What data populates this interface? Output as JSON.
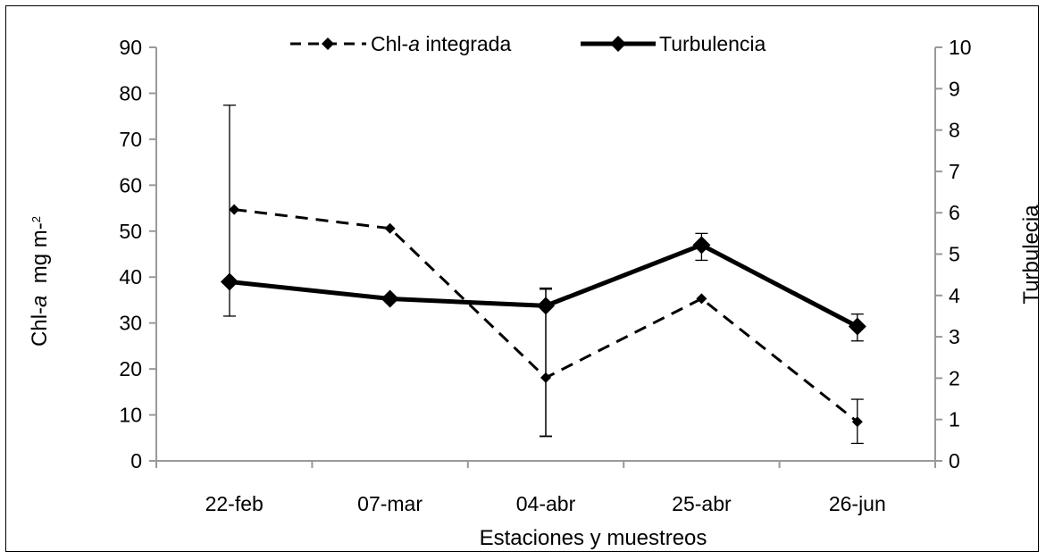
{
  "chart_data": {
    "type": "line",
    "categories": [
      "22-feb",
      "07-mar",
      "04-abr",
      "25-abr",
      "26-jun"
    ],
    "xlabel": "Estaciones y muestreos",
    "ylabel": {
      "prefix": "Chl-",
      "italic": "a",
      "suffix": "  mg m-",
      "sup": "2"
    },
    "y2label": "Turbulecia",
    "ylim": [
      0,
      90
    ],
    "y2lim": [
      0,
      10
    ],
    "yticks": [
      0,
      10,
      20,
      30,
      40,
      50,
      60,
      70,
      80,
      90
    ],
    "y2ticks": [
      0,
      1,
      2,
      3,
      4,
      5,
      6,
      7,
      8,
      9,
      10
    ],
    "grid": false,
    "legend_position": "top",
    "series": [
      {
        "name": {
          "prefix": "Chl-",
          "italic": "a",
          "suffix": " integrada"
        },
        "axis": "left",
        "style": "dashed",
        "color": "#000000",
        "x_positions": [
          0.5,
          1.5,
          2.5,
          3.5,
          4.5
        ],
        "values": [
          54.7,
          50.6,
          18.1,
          35.3,
          8.5
        ],
        "error_low": [
          null,
          null,
          5.3,
          null,
          3.8
        ],
        "error_high": [
          null,
          null,
          37.6,
          null,
          13.4
        ]
      },
      {
        "name": "Turbulencia",
        "axis": "right",
        "style": "solid",
        "color": "#000000",
        "x_positions": [
          0.47,
          1.5,
          2.5,
          3.5,
          4.5
        ],
        "values": [
          4.33,
          3.92,
          3.75,
          5.22,
          3.25
        ],
        "error_low": [
          3.5,
          null,
          0.6,
          4.85,
          2.9
        ],
        "error_high": [
          8.6,
          null,
          4.15,
          5.5,
          3.55
        ]
      }
    ]
  }
}
